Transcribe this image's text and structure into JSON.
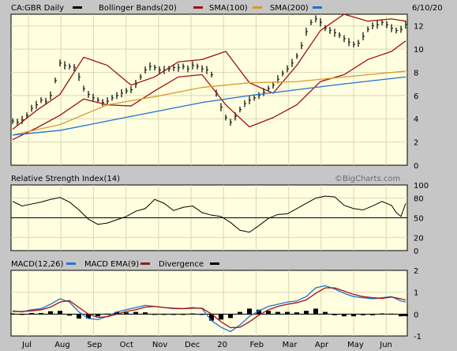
{
  "chart_data": [
    {
      "type": "ohlc",
      "panel": "price",
      "header": {
        "symbol": "CA:GBR Daily",
        "legend": [
          {
            "name": "Bollinger Bands(20)",
            "color": "#8b0000"
          },
          {
            "name": "SMA(100)",
            "color": "#8b0000"
          },
          {
            "name": "SMA(200)",
            "color": "#2a6fd6"
          }
        ],
        "date": "6/10/20",
        "legend_colors": {
          "bb": "#a01010",
          "sma100": "#d99a2b",
          "sma200": "#1f6fd6",
          "price": "#000000"
        }
      },
      "ylim": [
        0,
        13
      ],
      "y_ticks": [
        "0",
        "2",
        "4",
        "6",
        "8",
        "10",
        "12"
      ],
      "x_labels": [
        "Jul",
        "Aug",
        "Sep",
        "Oct",
        "Nov",
        "Dec",
        "20",
        "Feb",
        "Mar",
        "Apr",
        "May",
        "Jun"
      ],
      "grid": true,
      "series": [
        {
          "label": "price",
          "x": [
            0,
            3,
            6,
            9,
            12,
            15,
            18,
            21,
            24,
            27,
            30,
            33,
            36,
            39,
            42,
            45,
            48,
            51,
            54,
            57,
            60,
            63,
            66,
            69,
            72,
            75,
            78,
            81,
            84,
            87,
            90,
            93,
            96,
            99,
            102,
            105,
            108,
            111,
            114,
            117,
            120,
            123,
            126,
            129,
            132,
            135,
            138,
            141,
            144,
            147,
            150,
            153,
            156,
            159,
            162,
            165,
            168,
            171,
            174,
            177,
            180,
            183,
            186,
            189,
            192,
            195,
            198,
            201,
            204,
            207,
            210,
            213,
            216,
            219,
            222,
            225,
            228,
            231,
            234,
            237,
            240,
            243,
            246,
            249
          ],
          "y": [
            3.8,
            3.7,
            3.9,
            4.3,
            4.9,
            5.2,
            5.6,
            5.5,
            6.0,
            7.3,
            8.8,
            8.6,
            8.5,
            8.4,
            7.6,
            6.6,
            6.1,
            5.8,
            5.6,
            5.4,
            5.5,
            5.8,
            6.0,
            6.2,
            6.4,
            6.5,
            7.0,
            7.6,
            8.2,
            8.5,
            8.4,
            8.2,
            8.2,
            8.3,
            8.4,
            8.4,
            8.5,
            8.3,
            8.6,
            8.5,
            8.3,
            8.2,
            7.8,
            6.2,
            5.0,
            4.1,
            3.7,
            4.2,
            4.8,
            5.3,
            5.6,
            5.8,
            6.0,
            6.3,
            6.6,
            6.9,
            7.4,
            7.9,
            8.3,
            8.8,
            9.4,
            10.3,
            11.5,
            12.3,
            12.6,
            12.3,
            11.8,
            11.6,
            11.4,
            11.2,
            10.9,
            10.6,
            10.4,
            10.5,
            11.1,
            11.7,
            12.0,
            12.1,
            12.3,
            12.1,
            11.8,
            11.6,
            11.7,
            12.1
          ]
        },
        {
          "label": "BB upper",
          "color": "#a01010",
          "x": [
            0,
            15,
            30,
            45,
            60,
            75,
            90,
            105,
            120,
            135,
            150,
            165,
            180,
            195,
            210,
            225,
            240,
            249
          ],
          "y": [
            3.1,
            4.7,
            6.1,
            9.3,
            8.6,
            6.9,
            7.6,
            8.9,
            9.1,
            9.8,
            7.1,
            6.2,
            8.6,
            11.6,
            13.0,
            12.4,
            12.6,
            12.4
          ]
        },
        {
          "label": "BB lower",
          "color": "#a01010",
          "x": [
            0,
            15,
            30,
            45,
            60,
            75,
            90,
            105,
            120,
            135,
            150,
            165,
            180,
            195,
            210,
            225,
            240,
            249
          ],
          "y": [
            2.2,
            3.2,
            4.3,
            5.7,
            5.2,
            5.1,
            6.4,
            7.6,
            7.8,
            5.2,
            3.3,
            4.1,
            5.2,
            7.2,
            7.8,
            9.1,
            9.8,
            10.7
          ]
        },
        {
          "label": "SMA(100)",
          "color": "#d99a2b",
          "x": [
            0,
            30,
            60,
            90,
            120,
            150,
            180,
            210,
            249
          ],
          "y": [
            2.6,
            3.5,
            5.2,
            5.9,
            6.7,
            7.1,
            7.2,
            7.6,
            8.1
          ]
        },
        {
          "label": "SMA(200)",
          "color": "#1f6fd6",
          "x": [
            0,
            30,
            60,
            90,
            120,
            150,
            180,
            210,
            249
          ],
          "y": [
            2.6,
            3.0,
            3.8,
            4.6,
            5.4,
            6.0,
            6.5,
            7.0,
            7.6
          ]
        }
      ]
    },
    {
      "type": "line",
      "panel": "rsi",
      "header": {
        "title": "Relative Strength Index(14)",
        "watermark": "©BigCharts.com"
      },
      "ylim": [
        0,
        100
      ],
      "y_ticks": [
        "0",
        "20",
        "50",
        "80",
        "100"
      ],
      "reference_line": 50,
      "series": [
        {
          "label": "RSI(14)",
          "color": "#000000",
          "x": [
            0,
            6,
            12,
            18,
            24,
            30,
            36,
            42,
            48,
            54,
            60,
            66,
            72,
            78,
            84,
            90,
            96,
            102,
            108,
            114,
            120,
            126,
            132,
            138,
            144,
            150,
            156,
            162,
            168,
            174,
            180,
            186,
            192,
            198,
            204,
            210,
            216,
            222,
            228,
            234,
            240,
            243,
            246,
            249
          ],
          "y": [
            75,
            68,
            71,
            74,
            78,
            81,
            74,
            62,
            48,
            40,
            42,
            47,
            52,
            60,
            64,
            78,
            72,
            61,
            66,
            68,
            58,
            54,
            52,
            43,
            31,
            28,
            38,
            49,
            55,
            56,
            64,
            72,
            80,
            83,
            82,
            69,
            64,
            62,
            68,
            75,
            69,
            58,
            52,
            72
          ]
        }
      ]
    },
    {
      "type": "line",
      "panel": "macd",
      "header": {
        "legend": [
          {
            "name": "MACD(12,26)",
            "color": "#2a6fd6"
          },
          {
            "name": "MACD EMA(9)",
            "color": "#8b2020"
          },
          {
            "name": "Divergence",
            "color": "#000000"
          }
        ]
      },
      "ylim": [
        -1,
        2
      ],
      "y_ticks": [
        "-1",
        "0",
        "1",
        "2"
      ],
      "series": [
        {
          "label": "MACD",
          "color": "#1f6fd6",
          "x": [
            0,
            6,
            12,
            18,
            24,
            30,
            36,
            42,
            48,
            54,
            60,
            66,
            72,
            78,
            84,
            90,
            96,
            102,
            108,
            114,
            120,
            126,
            132,
            138,
            144,
            150,
            156,
            162,
            168,
            174,
            180,
            186,
            192,
            198,
            204,
            210,
            216,
            222,
            228,
            234,
            240,
            246,
            249
          ],
          "y": [
            0.15,
            0.1,
            0.2,
            0.25,
            0.45,
            0.7,
            0.55,
            0.1,
            -0.2,
            -0.25,
            -0.1,
            0.1,
            0.2,
            0.3,
            0.4,
            0.35,
            0.3,
            0.25,
            0.25,
            0.3,
            0.25,
            -0.3,
            -0.6,
            -0.8,
            -0.5,
            -0.1,
            0.15,
            0.35,
            0.45,
            0.55,
            0.6,
            0.8,
            1.2,
            1.3,
            1.15,
            0.95,
            0.8,
            0.75,
            0.7,
            0.75,
            0.8,
            0.6,
            0.55
          ]
        },
        {
          "label": "MACD EMA",
          "color": "#a01010",
          "x": [
            0,
            6,
            12,
            18,
            24,
            30,
            36,
            42,
            48,
            54,
            60,
            66,
            72,
            78,
            84,
            90,
            96,
            102,
            108,
            114,
            120,
            126,
            132,
            138,
            144,
            150,
            156,
            162,
            168,
            174,
            180,
            186,
            192,
            198,
            204,
            210,
            216,
            222,
            228,
            234,
            240,
            246,
            249
          ],
          "y": [
            0.12,
            0.12,
            0.15,
            0.2,
            0.32,
            0.55,
            0.62,
            0.3,
            0.0,
            -0.15,
            -0.12,
            0.0,
            0.12,
            0.2,
            0.32,
            0.35,
            0.3,
            0.27,
            0.25,
            0.27,
            0.27,
            0.0,
            -0.35,
            -0.62,
            -0.6,
            -0.35,
            -0.05,
            0.2,
            0.35,
            0.45,
            0.52,
            0.65,
            0.95,
            1.2,
            1.2,
            1.05,
            0.9,
            0.8,
            0.75,
            0.72,
            0.78,
            0.7,
            0.64
          ]
        },
        {
          "label": "Divergence",
          "color": "#000000",
          "x": [
            0,
            6,
            12,
            18,
            24,
            30,
            36,
            42,
            48,
            54,
            60,
            66,
            72,
            78,
            84,
            90,
            96,
            102,
            108,
            114,
            120,
            126,
            132,
            138,
            144,
            150,
            156,
            162,
            168,
            174,
            180,
            186,
            192,
            198,
            204,
            210,
            216,
            222,
            228,
            234,
            240,
            246,
            249
          ],
          "y": [
            0.03,
            -0.02,
            0.05,
            0.05,
            0.13,
            0.15,
            -0.07,
            -0.2,
            -0.2,
            -0.1,
            0.02,
            0.1,
            0.08,
            0.1,
            0.08,
            0.0,
            0.0,
            -0.02,
            0.0,
            0.03,
            -0.02,
            -0.3,
            -0.25,
            -0.18,
            0.1,
            0.25,
            0.2,
            0.15,
            0.1,
            0.1,
            0.08,
            0.15,
            0.25,
            0.1,
            -0.05,
            -0.1,
            -0.1,
            -0.05,
            -0.05,
            0.03,
            0.02,
            -0.1,
            -0.09
          ]
        }
      ]
    }
  ]
}
